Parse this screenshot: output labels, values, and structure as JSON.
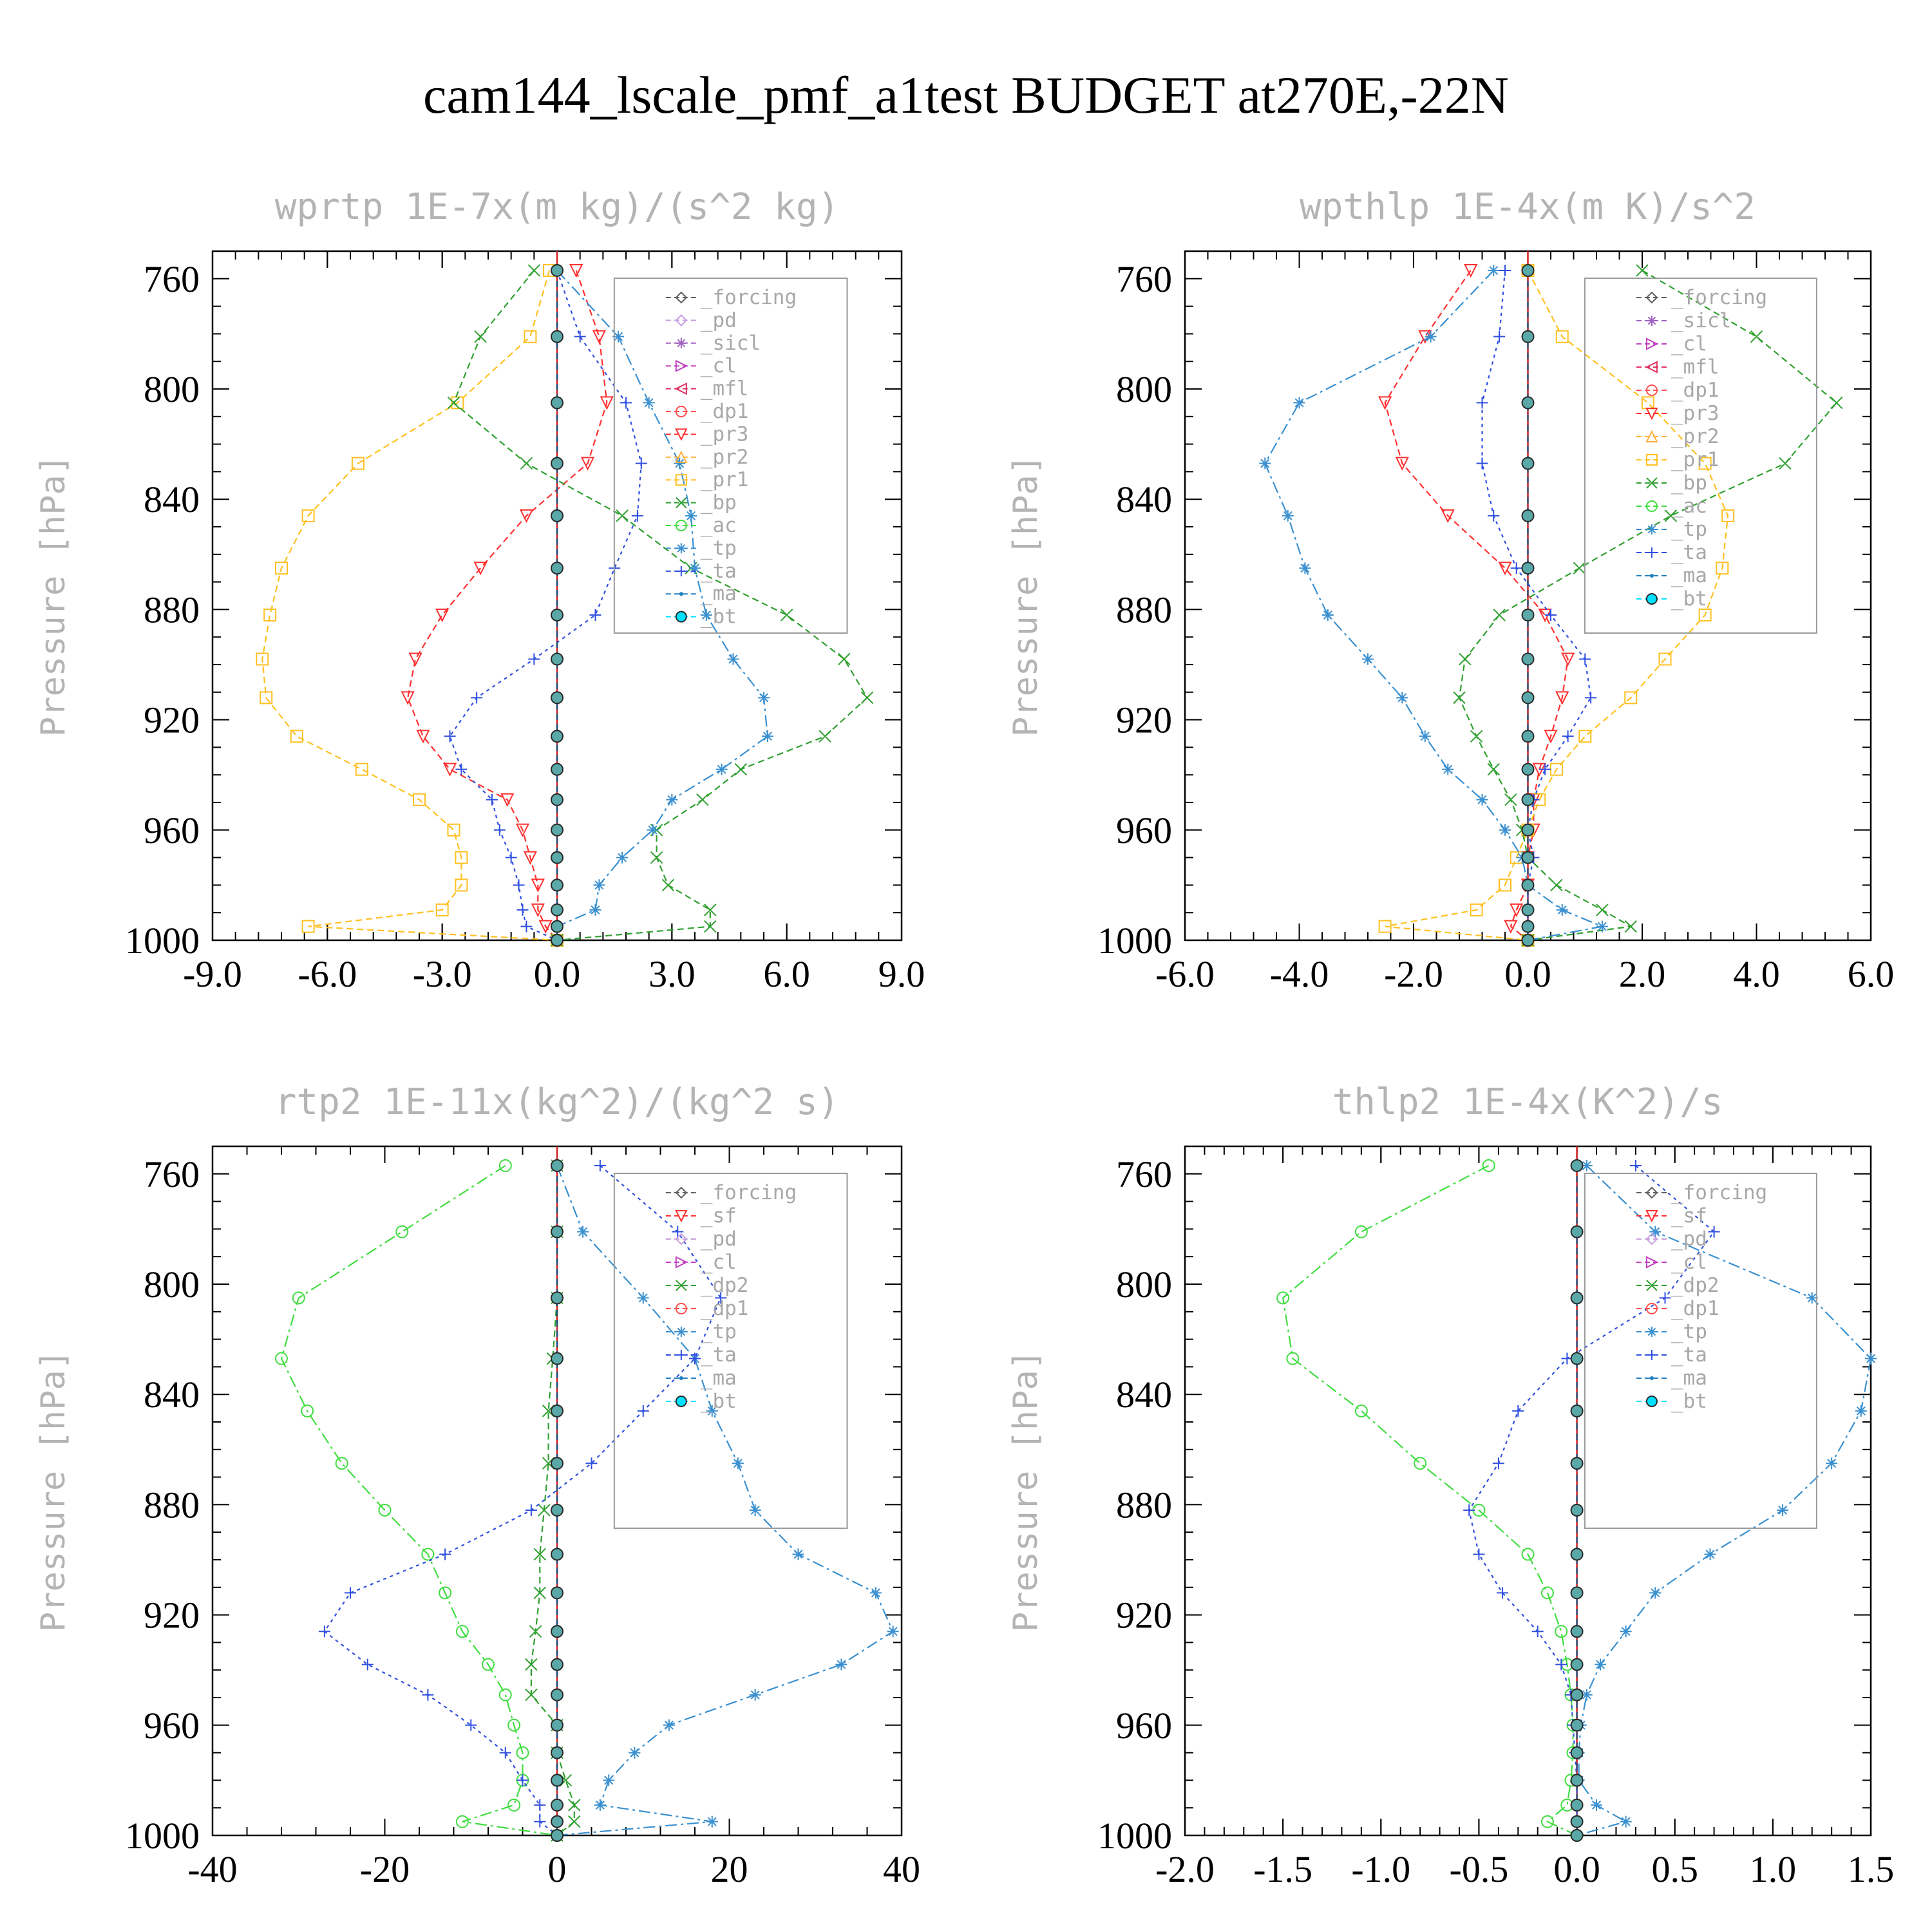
{
  "figure": {
    "title": "cam144_lscale_pmf_a1test  BUDGET at270E,-22N"
  },
  "chart_data": [
    {
      "type": "line",
      "title": "wprtp  1E-7x(m kg)/(s^2 kg)",
      "ylabel": "Pressure [hPa]",
      "xlim": [
        -9,
        9
      ],
      "ylim": [
        1000,
        750
      ],
      "xticks": [
        "-9.0",
        "-6.0",
        "-3.0",
        "0.0",
        "3.0",
        "6.0",
        "9.0"
      ],
      "xtick_values": [
        -9,
        -6,
        -3,
        0,
        3,
        6,
        9
      ],
      "yticks": [
        "760",
        "800",
        "840",
        "880",
        "920",
        "960",
        "1000"
      ],
      "legend": [
        "_forcing",
        "_pd",
        "_sicl",
        "_cl",
        "_mfl",
        "_dp1",
        "_pr3",
        "_pr2",
        "_pr1",
        "_bp",
        "_ac",
        "_tp",
        "_ta",
        "_ma",
        "_bt"
      ],
      "y": [
        757,
        781,
        805,
        827,
        846,
        865,
        882,
        898,
        912,
        926,
        938,
        949,
        960,
        970,
        980,
        989,
        995,
        1000
      ],
      "series": [
        {
          "name": "_pr3",
          "color": "#ff3030",
          "x": [
            0.5,
            1.1,
            1.3,
            0.8,
            -0.8,
            -2.0,
            -3.0,
            -3.7,
            -3.9,
            -3.5,
            -2.8,
            -1.3,
            -0.9,
            -0.7,
            -0.5,
            -0.5,
            -0.3,
            0.0
          ]
        },
        {
          "name": "_pr1",
          "color": "#ffc020",
          "x": [
            -0.2,
            -0.7,
            -2.6,
            -5.2,
            -6.5,
            -7.2,
            -7.5,
            -7.7,
            -7.6,
            -6.8,
            -5.1,
            -3.6,
            -2.7,
            -2.5,
            -2.5,
            -3.0,
            -6.5,
            0.0
          ]
        },
        {
          "name": "_bp",
          "color": "#30a030",
          "x": [
            -0.6,
            -2.0,
            -2.7,
            -0.8,
            1.7,
            3.5,
            6.0,
            7.5,
            8.1,
            7.0,
            4.8,
            3.8,
            2.6,
            2.6,
            2.9,
            4.0,
            4.0,
            0.0
          ]
        },
        {
          "name": "_tp",
          "color": "#3a90d0",
          "x": [
            0.0,
            1.6,
            2.4,
            3.2,
            3.5,
            3.6,
            3.9,
            4.6,
            5.4,
            5.5,
            4.3,
            3.0,
            2.5,
            1.7,
            1.1,
            1.0,
            0.0,
            0.0
          ]
        },
        {
          "name": "_ta",
          "color": "#3050e0",
          "x": [
            0.0,
            0.6,
            1.8,
            2.2,
            2.1,
            1.5,
            1.0,
            -0.6,
            -2.1,
            -2.8,
            -2.5,
            -1.7,
            -1.5,
            -1.2,
            -1.0,
            -0.9,
            -0.8,
            0.0
          ]
        },
        {
          "name": "_bt",
          "color": "#1a4a7a",
          "x": [
            0,
            0,
            0,
            0,
            0,
            0,
            0,
            0,
            0,
            0,
            0,
            0,
            0,
            0,
            0,
            0,
            0,
            0
          ]
        }
      ]
    },
    {
      "type": "line",
      "title": "wpthlp  1E-4x(m K)/s^2",
      "ylabel": "Pressure [hPa]",
      "xlim": [
        -6,
        6
      ],
      "ylim": [
        1000,
        750
      ],
      "xticks": [
        "-6.0",
        "-4.0",
        "-2.0",
        "0.0",
        "2.0",
        "4.0",
        "6.0"
      ],
      "xtick_values": [
        -6,
        -4,
        -2,
        0,
        2,
        4,
        6
      ],
      "yticks": [
        "760",
        "800",
        "840",
        "880",
        "920",
        "960",
        "1000"
      ],
      "legend": [
        "_forcing",
        "_sicl",
        "_cl",
        "_mfl",
        "_dp1",
        "_pr3",
        "_pr2",
        "_pr1",
        "_bp",
        "_ac",
        "_tp",
        "_ta",
        "_ma",
        "_bt"
      ],
      "y": [
        757,
        781,
        805,
        827,
        846,
        865,
        882,
        898,
        912,
        926,
        938,
        949,
        960,
        970,
        980,
        989,
        995,
        1000
      ],
      "series": [
        {
          "name": "_pr3",
          "color": "#ff3030",
          "x": [
            -1.0,
            -1.8,
            -2.5,
            -2.2,
            -1.4,
            -0.4,
            0.3,
            0.7,
            0.6,
            0.4,
            0.2,
            0.1,
            0.1,
            0.0,
            0.0,
            -0.2,
            -0.3,
            0.0
          ]
        },
        {
          "name": "_pr1",
          "color": "#ffc020",
          "x": [
            0.0,
            0.6,
            2.1,
            3.1,
            3.5,
            3.4,
            3.1,
            2.4,
            1.8,
            1.0,
            0.5,
            0.2,
            0.0,
            -0.2,
            -0.4,
            -0.9,
            -2.5,
            0.0
          ]
        },
        {
          "name": "_bp",
          "color": "#30a030",
          "x": [
            2.0,
            4.0,
            5.4,
            4.5,
            2.5,
            0.9,
            -0.5,
            -1.1,
            -1.2,
            -0.9,
            -0.6,
            -0.3,
            -0.1,
            0.0,
            0.5,
            1.3,
            1.8,
            0.0
          ]
        },
        {
          "name": "_tp",
          "color": "#3a90d0",
          "x": [
            -0.6,
            -1.7,
            -4.0,
            -4.6,
            -4.2,
            -3.9,
            -3.5,
            -2.8,
            -2.2,
            -1.8,
            -1.4,
            -0.8,
            -0.4,
            -0.1,
            0.0,
            0.6,
            1.3,
            0.0
          ]
        },
        {
          "name": "_ta",
          "color": "#3050e0",
          "x": [
            -0.4,
            -0.5,
            -0.8,
            -0.8,
            -0.6,
            -0.2,
            0.4,
            1.0,
            1.1,
            0.7,
            0.3,
            0.1,
            0.0,
            0.1,
            0.0,
            0.0,
            0.0,
            0.0
          ]
        },
        {
          "name": "_bt",
          "color": "#1a4a7a",
          "x": [
            0,
            0,
            0,
            0,
            0,
            0,
            0,
            0,
            0,
            0,
            0,
            0,
            0,
            0,
            0,
            0,
            0,
            0
          ]
        }
      ]
    },
    {
      "type": "line",
      "title": "rtp2  1E-11x(kg^2)/(kg^2 s)",
      "ylabel": "Pressure [hPa]",
      "xlim": [
        -40,
        40
      ],
      "ylim": [
        1000,
        750
      ],
      "xticks": [
        "-40",
        "-20",
        "0",
        "20",
        "40"
      ],
      "xtick_values": [
        -40,
        -20,
        0,
        20,
        40
      ],
      "yticks": [
        "760",
        "800",
        "840",
        "880",
        "920",
        "960",
        "1000"
      ],
      "legend": [
        "_forcing",
        "_sf",
        "_pd",
        "_cl",
        "_dp2",
        "_dp1",
        "_tp",
        "_ta",
        "_ma",
        "_bt"
      ],
      "y": [
        757,
        781,
        805,
        827,
        846,
        865,
        882,
        898,
        912,
        926,
        938,
        949,
        960,
        970,
        980,
        989,
        995,
        1000
      ],
      "series": [
        {
          "name": "_dp1",
          "color": "#40dd40",
          "x": [
            -6,
            -18,
            -30,
            -32,
            -29,
            -25,
            -20,
            -15,
            -13,
            -11,
            -8,
            -6,
            -5,
            -4,
            -4,
            -5,
            -11,
            0
          ]
        },
        {
          "name": "_dp2",
          "color": "#30a030",
          "x": [
            0,
            0,
            0,
            -0.5,
            -1,
            -1,
            -1.5,
            -2,
            -2,
            -2.5,
            -3,
            -3,
            0,
            0,
            1,
            2,
            2,
            0
          ]
        },
        {
          "name": "_tp",
          "color": "#3a90d0",
          "x": [
            0,
            3,
            10,
            16,
            18,
            21,
            23,
            28,
            37,
            39,
            33,
            23,
            13,
            9,
            6,
            5,
            18,
            0
          ]
        },
        {
          "name": "_ta",
          "color": "#3050e0",
          "x": [
            5,
            14,
            19,
            16,
            10,
            4,
            -3,
            -13,
            -24,
            -27,
            -22,
            -15,
            -10,
            -6,
            -4,
            -2,
            -2,
            0
          ]
        },
        {
          "name": "_bt",
          "color": "#1a4a7a",
          "x": [
            0,
            0,
            0,
            0,
            0,
            0,
            0,
            0,
            0,
            0,
            0,
            0,
            0,
            0,
            0,
            0,
            0,
            0
          ]
        }
      ]
    },
    {
      "type": "line",
      "title": "thlp2  1E-4x(K^2)/s",
      "ylabel": "Pressure [hPa]",
      "xlim": [
        -2,
        1.5
      ],
      "ylim": [
        1000,
        750
      ],
      "xticks": [
        "-2.0",
        "-1.5",
        "-1.0",
        "-0.5",
        "0.0",
        "0.5",
        "1.0",
        "1.5"
      ],
      "xtick_values": [
        -2,
        -1.5,
        -1,
        -0.5,
        0,
        0.5,
        1,
        1.5
      ],
      "yticks": [
        "760",
        "800",
        "840",
        "880",
        "920",
        "960",
        "1000"
      ],
      "legend": [
        "_forcing",
        "_sf",
        "_pd",
        "_cl",
        "_dp2",
        "_dp1",
        "_tp",
        "_ta",
        "_ma",
        "_bt"
      ],
      "y": [
        757,
        781,
        805,
        827,
        846,
        865,
        882,
        898,
        912,
        926,
        938,
        949,
        960,
        970,
        980,
        989,
        995,
        1000
      ],
      "series": [
        {
          "name": "_dp1",
          "color": "#40dd40",
          "x": [
            -0.45,
            -1.1,
            -1.5,
            -1.45,
            -1.1,
            -0.8,
            -0.5,
            -0.25,
            -0.15,
            -0.08,
            -0.05,
            -0.03,
            -0.02,
            -0.02,
            -0.03,
            -0.05,
            -0.15,
            0.0
          ]
        },
        {
          "name": "_tp",
          "color": "#3a90d0",
          "x": [
            0.05,
            0.4,
            1.2,
            1.5,
            1.45,
            1.3,
            1.05,
            0.68,
            0.4,
            0.25,
            0.12,
            0.05,
            0.02,
            0.01,
            0.01,
            0.1,
            0.25,
            0.0
          ]
        },
        {
          "name": "_ta",
          "color": "#3050e0",
          "x": [
            0.3,
            0.7,
            0.45,
            -0.05,
            -0.3,
            -0.4,
            -0.55,
            -0.5,
            -0.38,
            -0.2,
            -0.08,
            -0.03,
            -0.02,
            -0.01,
            0.0,
            0.0,
            0.0,
            0.0
          ]
        },
        {
          "name": "_bt",
          "color": "#1a4a7a",
          "x": [
            0,
            0,
            0,
            0,
            0,
            0,
            0,
            0,
            0,
            0,
            0,
            0,
            0,
            0,
            0,
            0,
            0,
            0
          ]
        }
      ]
    }
  ]
}
